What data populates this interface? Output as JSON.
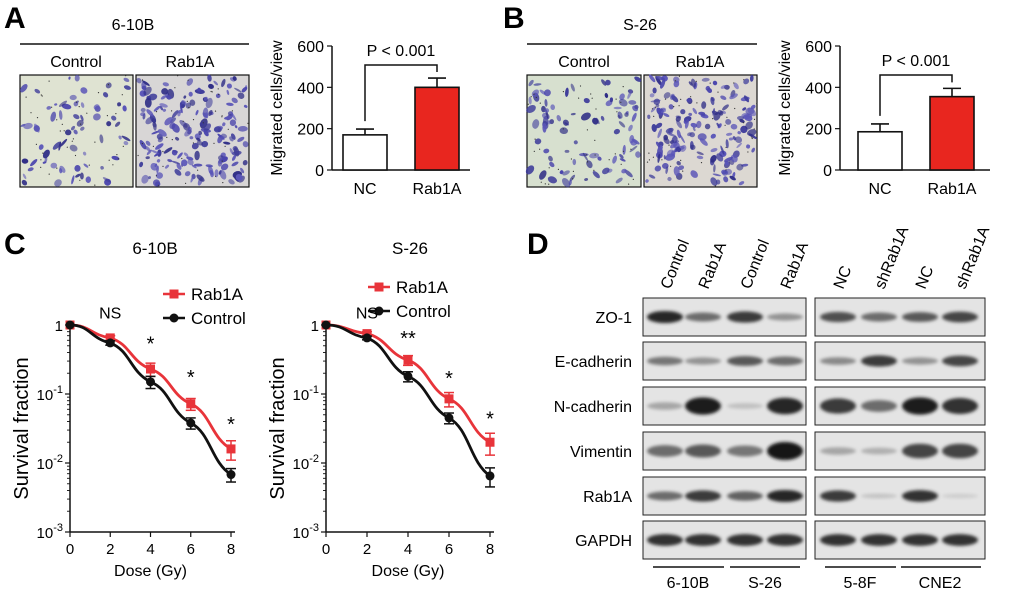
{
  "panels": {
    "A": {
      "label": "A",
      "cell_line": "6-10B",
      "image_labels": [
        "Control",
        "Rab1A"
      ],
      "chart_data": {
        "type": "bar",
        "categories": [
          "NC",
          "Rab1A"
        ],
        "values": [
          170,
          400
        ],
        "errors": [
          28,
          45
        ],
        "ylabel": "Migrated cells/view",
        "yticks": [
          "0",
          "200",
          "400",
          "600"
        ],
        "ylim": [
          0,
          600
        ],
        "significance": "P < 0.001",
        "colors": [
          "#ffffff",
          "#e8261f"
        ]
      }
    },
    "B": {
      "label": "B",
      "cell_line": "S-26",
      "image_labels": [
        "Control",
        "Rab1A"
      ],
      "chart_data": {
        "type": "bar",
        "categories": [
          "NC",
          "Rab1A"
        ],
        "values": [
          185,
          355
        ],
        "errors": [
          38,
          40
        ],
        "ylabel": "Migrated cells/view",
        "yticks": [
          "0",
          "200",
          "400",
          "600"
        ],
        "ylim": [
          0,
          600
        ],
        "significance": "P < 0.001",
        "colors": [
          "#ffffff",
          "#e8261f"
        ]
      }
    },
    "C": {
      "label": "C",
      "charts": [
        {
          "type": "line",
          "title": "6-10B",
          "x": [
            0,
            2,
            4,
            6,
            8
          ],
          "xlabel": "Dose (Gy)",
          "ylabel": "Survival fraction",
          "xticks": [
            "0",
            "2",
            "4",
            "6",
            "8"
          ],
          "ylim_log10": [
            -3,
            0
          ],
          "series": [
            {
              "name": "Rab1A",
              "color": "#e8343a",
              "marker": "square",
              "values": [
                1,
                0.65,
                0.23,
                0.072,
                0.016
              ],
              "errors": [
                0,
                0.05,
                0.05,
                0.014,
                0.005
              ]
            },
            {
              "name": "Control",
              "color": "#111111",
              "marker": "circle",
              "values": [
                1,
                0.55,
                0.15,
                0.038,
                0.0068
              ],
              "errors": [
                0,
                0.04,
                0.03,
                0.007,
                0.0015
              ]
            }
          ],
          "annotations": [
            {
              "x": 2,
              "text": "NS",
              "log10y": 0.18
            },
            {
              "x": 4,
              "text": "*",
              "log10y": -0.28
            },
            {
              "x": 6,
              "text": "*",
              "log10y": -0.77
            },
            {
              "x": 8,
              "text": "*",
              "log10y": -1.45
            }
          ]
        },
        {
          "type": "line",
          "title": "S-26",
          "x": [
            0,
            2,
            4,
            6,
            8
          ],
          "xlabel": "Dose (Gy)",
          "ylabel": "Survival fraction",
          "xticks": [
            "0",
            "2",
            "4",
            "6",
            "8"
          ],
          "ylim_log10": [
            -3,
            0
          ],
          "series": [
            {
              "name": "Rab1A",
              "color": "#e8343a",
              "marker": "square",
              "values": [
                1,
                0.75,
                0.31,
                0.085,
                0.02
              ],
              "errors": [
                0,
                0.05,
                0.05,
                0.02,
                0.007
              ]
            },
            {
              "name": "Control",
              "color": "#111111",
              "marker": "circle",
              "values": [
                1,
                0.65,
                0.18,
                0.045,
                0.0065
              ],
              "errors": [
                0,
                0.04,
                0.03,
                0.008,
                0.002
              ]
            }
          ],
          "annotations": [
            {
              "x": 2,
              "text": "NS",
              "log10y": 0.18
            },
            {
              "x": 4,
              "text": "**",
              "log10y": -0.2
            },
            {
              "x": 6,
              "text": "*",
              "log10y": -0.78
            },
            {
              "x": 8,
              "text": "*",
              "log10y": -1.37
            }
          ]
        }
      ]
    },
    "D": {
      "label": "D",
      "lanes": [
        "Control",
        "Rab1A",
        "Control",
        "Rab1A",
        "NC",
        "shRab1A",
        "NC",
        "shRab1A"
      ],
      "proteins": [
        "ZO-1",
        "E-cadherin",
        "N-cadherin",
        "Vimentin",
        "Rab1A",
        "GAPDH"
      ],
      "cell_lines": [
        "6-10B",
        "S-26",
        "5-8F",
        "CNE2"
      ],
      "band_intensity": [
        [
          0.9,
          0.55,
          0.8,
          0.35,
          0.7,
          0.55,
          0.65,
          0.75
        ],
        [
          0.5,
          0.35,
          0.65,
          0.55,
          0.4,
          0.8,
          0.35,
          0.75
        ],
        [
          0.25,
          0.95,
          0.12,
          0.9,
          0.8,
          0.55,
          0.95,
          0.85
        ],
        [
          0.55,
          0.65,
          0.5,
          1.0,
          0.25,
          0.2,
          0.75,
          0.75
        ],
        [
          0.55,
          0.8,
          0.6,
          0.9,
          0.8,
          0.1,
          0.85,
          0.05
        ],
        [
          0.85,
          0.85,
          0.85,
          0.85,
          0.85,
          0.85,
          0.85,
          0.85
        ]
      ]
    }
  }
}
